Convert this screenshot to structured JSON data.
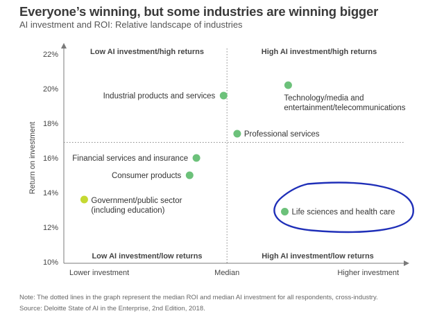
{
  "header": {
    "title": "Everyone’s winning, but some industries are winning bigger",
    "subtitle": "AI investment and ROI: Relative landscape of industries"
  },
  "footer": {
    "note": "Note: The dotted lines in the graph represent the median ROI and median AI investment for all respondents, cross-industry.",
    "source": "Source: Deloitte State of AI in the Enterprise, 2nd Edition, 2018."
  },
  "chart_data": {
    "type": "scatter",
    "title": "Everyone’s winning, but some industries are winning bigger",
    "subtitle": "AI investment and ROI: Relative landscape of industries",
    "xlabel": "",
    "ylabel": "Return on investment",
    "x_axis_labels": [
      "Lower investment",
      "Median",
      "Higher investment"
    ],
    "xlim": [
      0,
      100
    ],
    "x_median": 48,
    "ylim": [
      10,
      22
    ],
    "y_ticks": [
      10,
      12,
      14,
      16,
      18,
      20,
      22
    ],
    "y_tick_labels": [
      "10%",
      "12%",
      "14%",
      "16%",
      "18%",
      "20%",
      "22%"
    ],
    "y_median": 16.9,
    "grid": false,
    "quadrant_labels": {
      "top_left": "Low AI investment/high returns",
      "top_right": "High AI investment/high returns",
      "bottom_left": "Low AI investment/low returns",
      "bottom_right": "High AI investment/low returns"
    },
    "points": [
      {
        "label": [
          "Technology/media and",
          "entertainment/telecommunications"
        ],
        "x": 66,
        "y": 20.2,
        "color": "#6cc17a",
        "label_pos": "below-left"
      },
      {
        "label": [
          "Industrial products and services"
        ],
        "x": 47,
        "y": 19.6,
        "color": "#6cc17a",
        "label_pos": "left"
      },
      {
        "label": [
          "Professional services"
        ],
        "x": 51,
        "y": 17.4,
        "color": "#6cc17a",
        "label_pos": "right"
      },
      {
        "label": [
          "Financial services and insurance"
        ],
        "x": 39,
        "y": 16.0,
        "color": "#6cc17a",
        "label_pos": "left"
      },
      {
        "label": [
          "Consumer products"
        ],
        "x": 37,
        "y": 15.0,
        "color": "#6cc17a",
        "label_pos": "left"
      },
      {
        "label": [
          "Government/public sector",
          "(including education)"
        ],
        "x": 6,
        "y": 13.6,
        "color": "#c5d932",
        "label_pos": "right"
      },
      {
        "label": [
          "Life sciences and health care"
        ],
        "x": 65,
        "y": 12.9,
        "color": "#6cc17a",
        "label_pos": "right"
      }
    ],
    "annotation": {
      "shape": "hand-drawn ellipse",
      "color": "#1f2fb8",
      "around": "Life sciences and health care"
    }
  }
}
